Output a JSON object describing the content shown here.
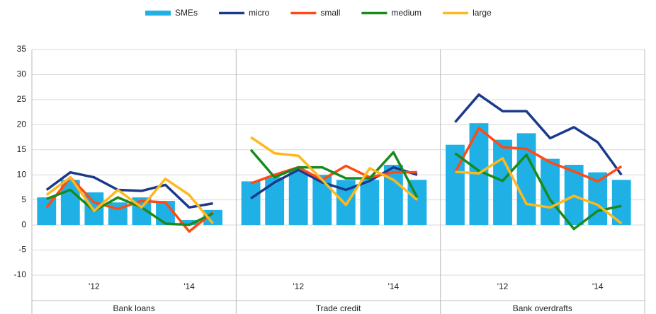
{
  "chart_data": {
    "type": "bar-line",
    "ylim": [
      -10,
      35
    ],
    "yticks": [
      -10,
      -5,
      0,
      5,
      10,
      15,
      20,
      25,
      30,
      35
    ],
    "grid": true,
    "legend": "top",
    "categories": [
      null,
      null,
      "'12",
      null,
      null,
      null,
      "'14",
      null
    ],
    "panels": [
      "Bank loans",
      "Trade credit",
      "Bank overdrafts"
    ],
    "series": [
      {
        "name": "SMEs",
        "kind": "bar",
        "color": "#1fb1e6",
        "values": [
          [
            5.5,
            9,
            6.5,
            4.5,
            5.5,
            4.8,
            1,
            3
          ],
          [
            8.7,
            9.5,
            10.8,
            10,
            9,
            9,
            12,
            9
          ],
          [
            16,
            20.3,
            17,
            18.3,
            13.2,
            12,
            10.5,
            9
          ]
        ]
      },
      {
        "name": "micro",
        "kind": "line",
        "color": "#1b3a8c",
        "values": [
          [
            7,
            10.5,
            9.5,
            7,
            6.8,
            8,
            3.5,
            4.3
          ],
          [
            5.3,
            8.5,
            11,
            8.5,
            7,
            8.8,
            11.5,
            10
          ],
          [
            20.5,
            26,
            22.7,
            22.7,
            17.3,
            19.5,
            16.5,
            10
          ]
        ]
      },
      {
        "name": "small",
        "kind": "line",
        "color": "#ff4a14",
        "values": [
          [
            3.5,
            9.5,
            4.5,
            3.2,
            4.8,
            4.5,
            -1.3,
            2.5
          ],
          [
            8.3,
            10,
            11.5,
            9,
            11.8,
            9.5,
            10.5,
            10.5
          ],
          [
            10.5,
            19.3,
            15.5,
            15.2,
            12.5,
            10.7,
            8.7,
            11.7
          ]
        ]
      },
      {
        "name": "medium",
        "kind": "line",
        "color": "#198a1e",
        "values": [
          [
            5.2,
            7,
            2.8,
            5.5,
            3.5,
            0.3,
            0,
            2.3
          ],
          [
            15,
            9.5,
            11.5,
            11.5,
            9.3,
            9.3,
            14.5,
            5.5
          ],
          [
            14.3,
            10.8,
            8.8,
            14,
            5,
            -0.8,
            2.8,
            3.8
          ]
        ]
      },
      {
        "name": "large",
        "kind": "line",
        "color": "#ffb81c",
        "values": [
          [
            6,
            9.5,
            2.8,
            7,
            3.5,
            9.2,
            6,
            0.3
          ],
          [
            17.5,
            14.3,
            13.8,
            9,
            4,
            11.3,
            9,
            5
          ],
          [
            10.6,
            10.3,
            13.3,
            4.2,
            3.5,
            5.8,
            4,
            0.3
          ]
        ]
      }
    ]
  }
}
